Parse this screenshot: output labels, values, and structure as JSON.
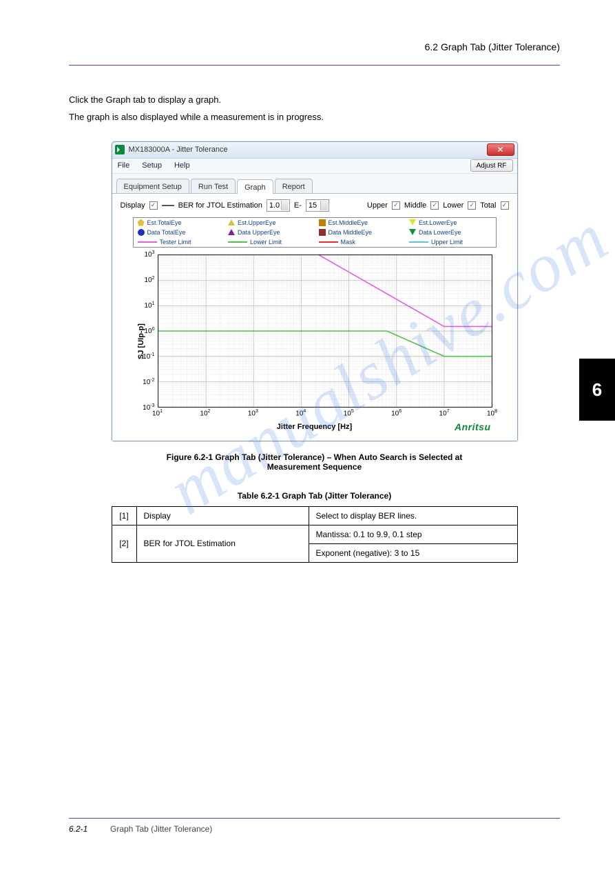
{
  "section_title": "6.2  Graph Tab (Jitter Tolerance)",
  "side_tab": "6",
  "intro": {
    "line1": "Click the Graph tab to display a graph.",
    "line2": "The graph is also displayed while a measurement is in progress."
  },
  "window": {
    "title": "MX183000A - Jitter Tolerance",
    "close": "✕",
    "menus": [
      "File",
      "Setup",
      "Help"
    ],
    "adjust_rf": "Adjust RF",
    "tabs": [
      "Equipment Setup",
      "Run Test",
      "Graph",
      "Report"
    ],
    "active_tab": 2,
    "display_row": {
      "display_label": "Display",
      "display_checked": true,
      "ber_label": "BER for JTOL Estimation",
      "mantissa": "1.0",
      "e": "E-",
      "exponent": "15",
      "groups": [
        {
          "label": "Upper",
          "checked": true
        },
        {
          "label": "Middle",
          "checked": true
        },
        {
          "label": "Lower",
          "checked": true
        },
        {
          "label": "Total",
          "checked": true
        }
      ]
    },
    "legend": {
      "row1": [
        {
          "label": "Est.TotalEye",
          "shape": "pent",
          "color": "#e0c040"
        },
        {
          "label": "Est.UpperEye",
          "shape": "tri-up",
          "color": "#e0c040"
        },
        {
          "label": "Est.MiddleEye",
          "shape": "sq",
          "color": "#c08000"
        },
        {
          "label": "Est.LowerEye",
          "shape": "tri-dn",
          "color": "#e0e030"
        }
      ],
      "row2": [
        {
          "label": "Data TotalEye",
          "shape": "circ",
          "color": "#2030c0"
        },
        {
          "label": "Data UpperEye",
          "shape": "tri-up",
          "color": "#8020a0"
        },
        {
          "label": "Data MiddleEye",
          "shape": "sq",
          "color": "#903030"
        },
        {
          "label": "Data LowerEye",
          "shape": "tri-dn",
          "color": "#109040"
        }
      ],
      "row3": [
        {
          "label": "Tester Limit",
          "color": "#e060e0"
        },
        {
          "label": "Lower Limit",
          "color": "#50c050"
        },
        {
          "label": "Mask",
          "color": "#e03030"
        },
        {
          "label": "Upper Limit",
          "color": "#60c0e0"
        }
      ]
    },
    "chart": {
      "ylabel": "SJ [UIp-p]",
      "xlabel": "Jitter Frequency [Hz]",
      "brand": "Anritsu",
      "x_exponents": [
        1,
        2,
        3,
        4,
        5,
        6,
        7,
        8
      ],
      "y_exponents": [
        -3,
        -2,
        -1,
        0,
        1,
        2,
        3
      ],
      "grid_color": "#c8c8c8",
      "minor_grid_color": "#e8e8e8",
      "tester_limit": {
        "color": "#e060e0",
        "points": [
          [
            1,
            3.3
          ],
          [
            4.1,
            3.3
          ],
          [
            7.0,
            0.18
          ],
          [
            8,
            0.18
          ]
        ]
      },
      "lower_limit": {
        "color": "#50c050",
        "points": [
          [
            1,
            0
          ],
          [
            5.8,
            0
          ],
          [
            7.0,
            -1
          ],
          [
            8,
            -1
          ]
        ]
      }
    }
  },
  "fig_caption_a": "Figure 6.2-1   Graph Tab (Jitter Tolerance) – When ",
  "fig_caption_b": "Auto Search",
  "fig_caption_c": " is Selected at ",
  "fig_caption_d": "Measurement Sequence",
  "tbl_caption": "Table 6.2-1   Graph Tab (Jitter Tolerance)",
  "table": {
    "rows": [
      [
        "[1]",
        "Display",
        "Select to display BER lines."
      ],
      [
        "[2]",
        "BER for JTOL Estimation",
        "Mantissa: 0.1 to 9.9, 0.1 step"
      ],
      [
        "",
        "",
        "Exponent (negative): 3 to 15"
      ]
    ]
  },
  "footer": {
    "left": "6.2-1",
    "right": "Graph Tab (Jitter Tolerance)"
  },
  "watermark": "manualshive.com"
}
